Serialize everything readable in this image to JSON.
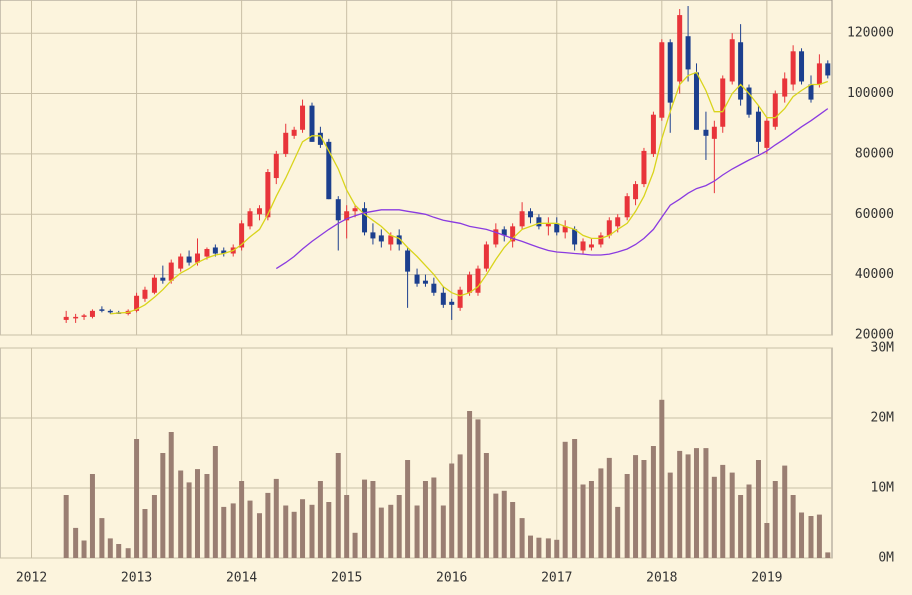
{
  "chart_data": {
    "type": "candlestick",
    "x": [
      2012.33,
      2012.42,
      2012.5,
      2012.58,
      2012.67,
      2012.75,
      2012.83,
      2012.92,
      2013,
      2013.08,
      2013.17,
      2013.25,
      2013.33,
      2013.42,
      2013.5,
      2013.58,
      2013.67,
      2013.75,
      2013.83,
      2013.92,
      2014,
      2014.08,
      2014.17,
      2014.25,
      2014.33,
      2014.42,
      2014.5,
      2014.58,
      2014.67,
      2014.75,
      2014.83,
      2014.92,
      2015,
      2015.08,
      2015.17,
      2015.25,
      2015.33,
      2015.42,
      2015.5,
      2015.58,
      2015.67,
      2015.75,
      2015.83,
      2015.92,
      2016,
      2016.08,
      2016.17,
      2016.25,
      2016.33,
      2016.42,
      2016.5,
      2016.58,
      2016.67,
      2016.75,
      2016.83,
      2016.92,
      2017,
      2017.08,
      2017.17,
      2017.25,
      2017.33,
      2017.42,
      2017.5,
      2017.58,
      2017.67,
      2017.75,
      2017.83,
      2017.92,
      2018,
      2018.08,
      2018.17,
      2018.25,
      2018.33,
      2018.42,
      2018.5,
      2018.58,
      2018.67,
      2018.75,
      2018.83,
      2018.92,
      2019,
      2019.08,
      2019.17,
      2019.25,
      2019.33,
      2019.42,
      2019.5,
      2019.58
    ],
    "open": [
      25000,
      25500,
      26000,
      26000,
      28500,
      28000,
      27500,
      27000,
      28000,
      32000,
      34000,
      39000,
      38000,
      42000,
      46000,
      44000,
      46000,
      49000,
      48000,
      47000,
      49000,
      56000,
      60000,
      59000,
      72000,
      80000,
      86000,
      88000,
      96000,
      87000,
      84000,
      65000,
      58000,
      61000,
      62000,
      54000,
      53000,
      50000,
      53000,
      48000,
      40000,
      38000,
      37000,
      34000,
      31000,
      29000,
      34000,
      34000,
      42000,
      50000,
      55000,
      51000,
      56000,
      61000,
      59000,
      56000,
      57000,
      54000,
      55000,
      48000,
      49000,
      50000,
      53000,
      56000,
      59000,
      65000,
      70000,
      80000,
      92000,
      117000,
      104000,
      119000,
      107000,
      88000,
      85000,
      89000,
      104000,
      117000,
      102000,
      94000,
      82000,
      89000,
      99000,
      103000,
      114000,
      103000,
      103000,
      110000
    ],
    "high": [
      28000,
      27000,
      27000,
      28500,
      29500,
      28500,
      28000,
      28500,
      34000,
      36000,
      40000,
      43000,
      45000,
      47000,
      48000,
      52000,
      49000,
      50000,
      49000,
      50000,
      58000,
      62000,
      63000,
      75000,
      81000,
      90000,
      89000,
      98000,
      97000,
      89000,
      85000,
      66000,
      63000,
      63000,
      64000,
      57000,
      55000,
      54000,
      55000,
      49000,
      42000,
      40000,
      39000,
      36000,
      32000,
      36000,
      41000,
      43000,
      51000,
      57000,
      56000,
      57000,
      64000,
      62000,
      60000,
      59000,
      59000,
      58000,
      56000,
      52000,
      52000,
      54000,
      59000,
      60000,
      67000,
      71000,
      82000,
      94000,
      118000,
      118000,
      128000,
      129000,
      110000,
      94000,
      91000,
      106000,
      120000,
      123000,
      103000,
      96000,
      92000,
      101000,
      107000,
      116000,
      115000,
      106000,
      113000,
      111000
    ],
    "low": [
      24000,
      24000,
      25000,
      25500,
      27500,
      27000,
      27000,
      26500,
      27500,
      31000,
      33500,
      37000,
      37000,
      41000,
      43000,
      43000,
      45000,
      46000,
      46000,
      46000,
      48000,
      55000,
      58000,
      58000,
      70000,
      79000,
      85000,
      87000,
      84000,
      82000,
      65000,
      48000,
      52000,
      59000,
      53000,
      50000,
      49000,
      48000,
      48000,
      29000,
      36000,
      36000,
      33000,
      29000,
      25000,
      28000,
      33000,
      33000,
      41000,
      49000,
      51000,
      49000,
      55000,
      57000,
      55000,
      53000,
      53000,
      52000,
      48000,
      47000,
      48000,
      49000,
      52000,
      54000,
      58000,
      63000,
      69000,
      79000,
      91000,
      87000,
      100000,
      104000,
      88000,
      78000,
      67000,
      87000,
      103000,
      96000,
      92000,
      80000,
      80000,
      88000,
      97000,
      101000,
      103000,
      97000,
      102000,
      105000
    ],
    "close": [
      26000,
      26000,
      26500,
      28000,
      28000,
      27500,
      27000,
      28000,
      33000,
      35000,
      39000,
      38000,
      44000,
      46000,
      44000,
      47000,
      48500,
      47000,
      47000,
      49000,
      57000,
      61000,
      62000,
      74000,
      80000,
      87000,
      88000,
      96000,
      84000,
      83000,
      65000,
      58000,
      61000,
      62000,
      54000,
      52000,
      51000,
      53000,
      50000,
      41000,
      37000,
      37000,
      34000,
      30000,
      30000,
      35000,
      40000,
      42000,
      50000,
      55000,
      53000,
      56000,
      61000,
      59000,
      56000,
      57000,
      54000,
      56000,
      50000,
      51000,
      50000,
      53000,
      58000,
      59000,
      66000,
      70000,
      81000,
      93000,
      117000,
      97000,
      126000,
      108000,
      88000,
      86000,
      89000,
      105000,
      118000,
      98000,
      93000,
      84000,
      91000,
      100000,
      105000,
      114000,
      104000,
      98000,
      110000,
      106000
    ],
    "volume": [
      9000000,
      4300000,
      2500000,
      12000000,
      5700000,
      2800000,
      2000000,
      1400000,
      17000000,
      7000000,
      9000000,
      15000000,
      18000000,
      12500000,
      10800000,
      12700000,
      12000000,
      16000000,
      7300000,
      7800000,
      11000000,
      8200000,
      6400000,
      9300000,
      11300000,
      7500000,
      6600000,
      8400000,
      7600000,
      11000000,
      8000000,
      15000000,
      9000000,
      3600000,
      11200000,
      11000000,
      7200000,
      7600000,
      9000000,
      14000000,
      7500000,
      11000000,
      11500000,
      7500000,
      13500000,
      14800000,
      21000000,
      19800000,
      15000000,
      9200000,
      9600000,
      8000000,
      5700000,
      3200000,
      2900000,
      2800000,
      2600000,
      16600000,
      17000000,
      10500000,
      11000000,
      12800000,
      14300000,
      7300000,
      12000000,
      14700000,
      14000000,
      16000000,
      22600000,
      12200000,
      15300000,
      14800000,
      15700000,
      15700000,
      11600000,
      13300000,
      12200000,
      9000000,
      10500000,
      14000000,
      5000000,
      11000000,
      13200000,
      9000000,
      6500000,
      6000000,
      6200000,
      800000
    ],
    "series": [
      {
        "color": "#d9d41c",
        "values": [
          null,
          null,
          null,
          null,
          null,
          27000,
          27300,
          27500,
          28500,
          30000,
          32500,
          35000,
          38000,
          40500,
          42000,
          44000,
          45500,
          46500,
          47000,
          48000,
          50000,
          52500,
          55000,
          60000,
          66000,
          72000,
          78000,
          84000,
          86000,
          86000,
          81000,
          75000,
          68000,
          63000,
          60000,
          58000,
          56000,
          53000,
          52000,
          49000,
          46000,
          43000,
          40000,
          36000,
          34000,
          33000,
          34000,
          36000,
          40000,
          45000,
          49000,
          52000,
          55000,
          56000,
          57000,
          57000,
          57000,
          56000,
          55000,
          53000,
          52000,
          52000,
          53000,
          55000,
          57000,
          61000,
          66000,
          74000,
          85000,
          94000,
          103000,
          106000,
          107000,
          101000,
          94000,
          94000,
          100000,
          103000,
          100000,
          96000,
          92000,
          92000,
          95000,
          99000,
          101000,
          103000,
          103000,
          104000
        ]
      },
      {
        "color": "#8a3be0",
        "values": [
          null,
          null,
          null,
          null,
          null,
          null,
          null,
          null,
          null,
          null,
          null,
          null,
          null,
          null,
          null,
          null,
          null,
          null,
          null,
          null,
          null,
          null,
          null,
          null,
          42000,
          44000,
          46000,
          48500,
          51000,
          53000,
          55000,
          57000,
          58500,
          59500,
          60500,
          61000,
          61500,
          61500,
          61500,
          61000,
          60500,
          60000,
          59000,
          58000,
          57500,
          57000,
          56000,
          55500,
          55000,
          54000,
          53000,
          52000,
          51000,
          50000,
          49000,
          48000,
          47500,
          47300,
          47000,
          46800,
          46500,
          46500,
          46800,
          47500,
          48500,
          50000,
          52000,
          55000,
          59000,
          63000,
          65000,
          67000,
          68500,
          69500,
          71000,
          73000,
          75000,
          76500,
          78000,
          79500,
          81000,
          83000,
          85000,
          87000,
          89000,
          91000,
          93000,
          95000
        ]
      }
    ],
    "up_color": "#e8343a",
    "down_color": "#1c3f8e",
    "volume_color": "#9a7e72",
    "xlim": [
      2011.7,
      2019.62
    ],
    "xticks": [
      2012,
      2013,
      2014,
      2015,
      2016,
      2017,
      2018,
      2019
    ],
    "ylim": [
      20000,
      131000
    ],
    "yticks": [
      20000,
      40000,
      60000,
      80000,
      100000,
      120000
    ],
    "volume_ylim": [
      0,
      30000000
    ],
    "volume_yticks": [
      {
        "value": 0,
        "label": "0M"
      },
      {
        "value": 10000000,
        "label": "10M"
      },
      {
        "value": 20000000,
        "label": "20M"
      },
      {
        "value": 30000000,
        "label": "30M"
      }
    ],
    "grid": true
  }
}
